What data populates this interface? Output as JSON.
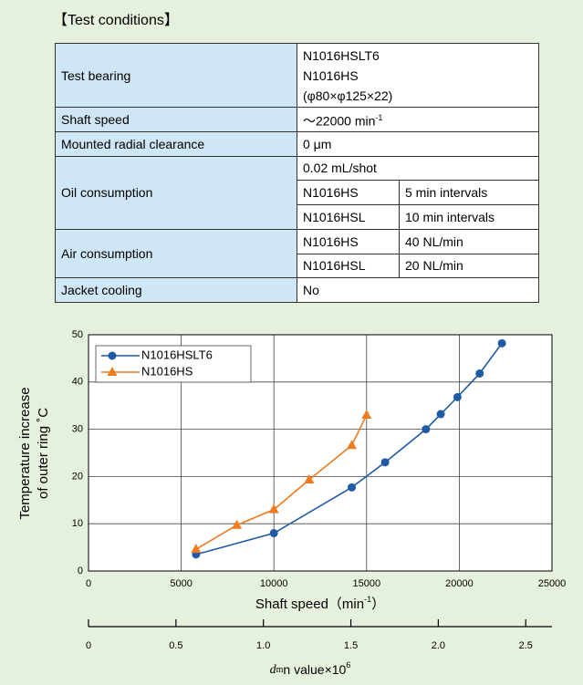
{
  "title": "【Test conditions】",
  "table": {
    "test_bearing": {
      "label": "Test bearing",
      "values": [
        "N1016HSLT6",
        "N1016HS",
        "(φ80×φ125×22)"
      ]
    },
    "shaft_speed": {
      "label": "Shaft speed",
      "value": "～22000 min",
      "sup": "-1"
    },
    "clearance": {
      "label": "Mounted radial clearance",
      "value": "0 μm"
    },
    "oil": {
      "label": "Oil consumption",
      "value": "0.02 mL/shot",
      "rows": [
        [
          "N1016HS",
          "5 min intervals"
        ],
        [
          "N1016HSL",
          "10 min intervals"
        ]
      ]
    },
    "air": {
      "label": "Air consumption",
      "rows": [
        [
          "N1016HS",
          "40 NL/min"
        ],
        [
          "N1016HSL",
          "20 NL/min"
        ]
      ]
    },
    "jacket": {
      "label": "Jacket cooling",
      "value": "No"
    }
  },
  "chart_data": {
    "type": "line",
    "xlabel": [
      "Shaft speed（min",
      "-1",
      "）"
    ],
    "ylabel": [
      "Temperature increase",
      "of outer ring ˚C"
    ],
    "xlim": [
      0,
      25000
    ],
    "xticks": [
      0,
      5000,
      10000,
      15000,
      20000,
      25000
    ],
    "ylim": [
      0,
      50
    ],
    "yticks": [
      0,
      10,
      20,
      30,
      40,
      50
    ],
    "grid": true,
    "legend": "upper left",
    "series": [
      {
        "name": "N1016HSLT6",
        "color": "#1f5aa6",
        "marker": "circle",
        "x": [
          5800,
          10000,
          14200,
          16000,
          18200,
          19000,
          19900,
          21100,
          22300
        ],
        "values": [
          3.5,
          8,
          17.7,
          23,
          30,
          33.2,
          36.8,
          41.8,
          48.2
        ]
      },
      {
        "name": "N1016HS",
        "color": "#f07a1e",
        "marker": "triangle",
        "x": [
          5800,
          8000,
          10000,
          11900,
          14200,
          15000
        ],
        "values": [
          4.6,
          9.7,
          13,
          19.3,
          26.6,
          33
        ]
      }
    ],
    "x2lim": [
      0,
      2.65
    ],
    "x2ticks": [
      0,
      0.5,
      {
        "value": 1,
        "label": "1.0"
      },
      1.5,
      {
        "value": 2,
        "label": "2.0"
      },
      2.5
    ],
    "x2label": [
      "d",
      "m",
      "n value×10",
      "6"
    ]
  }
}
